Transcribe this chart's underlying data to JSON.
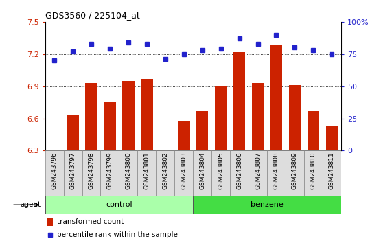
{
  "title": "GDS3560 / 225104_at",
  "samples": [
    "GSM243796",
    "GSM243797",
    "GSM243798",
    "GSM243799",
    "GSM243800",
    "GSM243801",
    "GSM243802",
    "GSM243803",
    "GSM243804",
    "GSM243805",
    "GSM243806",
    "GSM243807",
    "GSM243808",
    "GSM243809",
    "GSM243810",
    "GSM243811"
  ],
  "transformed_count": [
    6.31,
    6.63,
    6.93,
    6.75,
    6.95,
    6.97,
    6.31,
    6.58,
    6.67,
    6.9,
    7.22,
    6.93,
    7.28,
    6.91,
    6.67,
    6.53
  ],
  "percentile_rank": [
    70,
    77,
    83,
    79,
    84,
    83,
    71,
    75,
    78,
    79,
    87,
    83,
    90,
    80,
    78,
    75
  ],
  "groups": {
    "control": [
      0,
      7
    ],
    "benzene": [
      8,
      15
    ]
  },
  "ylim_left": [
    6.3,
    7.5
  ],
  "ylim_right": [
    0,
    100
  ],
  "yticks_left": [
    6.3,
    6.6,
    6.9,
    7.2,
    7.5
  ],
  "yticks_right": [
    0,
    25,
    50,
    75,
    100
  ],
  "bar_color": "#cc2200",
  "dot_color": "#2222cc",
  "control_color": "#aaffaa",
  "benzene_color": "#44dd44",
  "background_color": "#ffffff",
  "legend_bar_label": "transformed count",
  "legend_dot_label": "percentile rank within the sample",
  "ybase": 6.3
}
